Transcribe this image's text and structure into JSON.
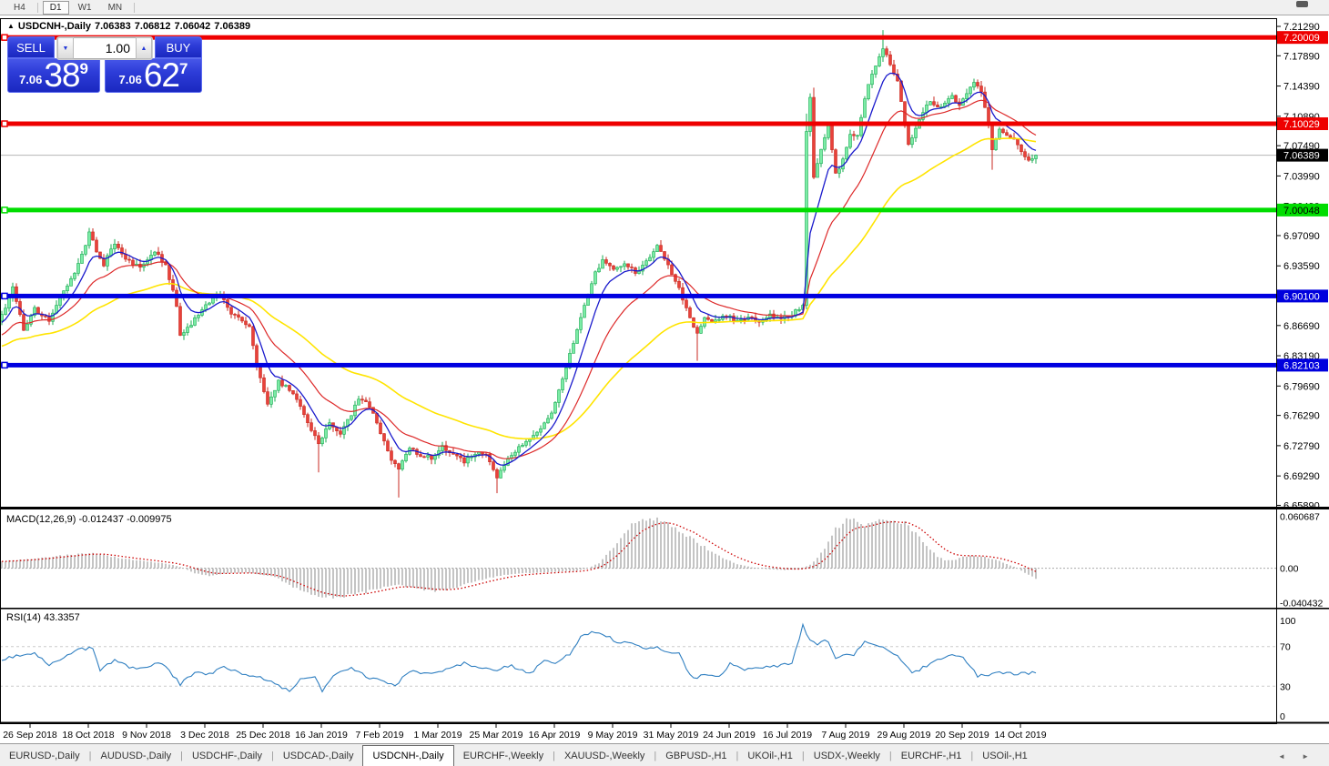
{
  "toolbar": {
    "timeframes": [
      {
        "label": "H4",
        "active": false
      },
      {
        "label": "D1",
        "active": true
      },
      {
        "label": "W1",
        "active": false
      },
      {
        "label": "MN",
        "active": false
      }
    ]
  },
  "chart": {
    "symbol_period": "USDCNH-,Daily",
    "open": "7.06383",
    "high": "7.06812",
    "low": "7.06042",
    "close": "7.06389"
  },
  "trade_panel": {
    "sell_label": "SELL",
    "buy_label": "BUY",
    "volume": "1.00",
    "sell_price": {
      "small": "7.06",
      "big": "38",
      "sup": "9"
    },
    "buy_price": {
      "small": "7.06",
      "big": "62",
      "sup": "7"
    }
  },
  "price_axis": {
    "ticks": [
      {
        "label": "7.21290",
        "price": 7.2129
      },
      {
        "label": "7.17890",
        "price": 7.1789
      },
      {
        "label": "7.14390",
        "price": 7.1439
      },
      {
        "label": "7.10890",
        "price": 7.1089
      },
      {
        "label": "7.07490",
        "price": 7.0749
      },
      {
        "label": "7.03990",
        "price": 7.0399
      },
      {
        "label": "7.00490",
        "price": 7.0049
      },
      {
        "label": "6.97090",
        "price": 6.9709
      },
      {
        "label": "6.93590",
        "price": 6.9359
      },
      {
        "label": "6.90090",
        "price": 6.9009
      },
      {
        "label": "6.86690",
        "price": 6.8669
      },
      {
        "label": "6.83190",
        "price": 6.8319
      },
      {
        "label": "6.79690",
        "price": 6.7969
      },
      {
        "label": "6.76290",
        "price": 6.7629
      },
      {
        "label": "6.72790",
        "price": 6.7279
      },
      {
        "label": "6.69290",
        "price": 6.6929
      },
      {
        "label": "6.65890",
        "price": 6.6589
      }
    ],
    "badges": [
      {
        "label": "7.20009",
        "price": 7.20009,
        "bg": "#ee0000",
        "fg": "#ffffff"
      },
      {
        "label": "7.10029",
        "price": 7.10029,
        "bg": "#ee0000",
        "fg": "#ffffff"
      },
      {
        "label": "7.06389",
        "price": 7.06389,
        "bg": "#000000",
        "fg": "#ffffff"
      },
      {
        "label": "7.00048",
        "price": 7.00048,
        "bg": "#00dd00",
        "fg": "#000000"
      },
      {
        "label": "6.90100",
        "price": 6.901,
        "bg": "#0000dd",
        "fg": "#ffffff"
      },
      {
        "label": "6.82103",
        "price": 6.82103,
        "bg": "#0000dd",
        "fg": "#ffffff"
      }
    ]
  },
  "chart_data": {
    "type": "candlestick",
    "symbol": "USDCNH-",
    "timeframe": "Daily",
    "ohlc_current": {
      "open": "7.06383",
      "high": "7.06812",
      "low": "7.06042",
      "close": "7.06389"
    },
    "y_range": [
      6.64,
      7.223
    ],
    "num_candles": 285,
    "x_labels": [
      "26 Sep 2018",
      "18 Oct 2018",
      "9 Nov 2018",
      "3 Dec 2018",
      "25 Dec 2018",
      "16 Jan 2019",
      "7 Feb 2019",
      "1 Mar 2019",
      "25 Mar 2019",
      "16 Apr 2019",
      "9 May 2019",
      "31 May 2019",
      "24 Jun 2019",
      "16 Jul 2019",
      "7 Aug 2019",
      "29 Aug 2019",
      "20 Sep 2019",
      "14 Oct 2019"
    ],
    "candles_per_label": 16,
    "first_label_candle": 8,
    "close_path": [
      [
        0,
        6.878
      ],
      [
        3,
        6.91
      ],
      [
        6,
        6.862
      ],
      [
        9,
        6.886
      ],
      [
        13,
        6.872
      ],
      [
        16,
        6.9
      ],
      [
        20,
        6.928
      ],
      [
        23,
        6.96
      ],
      [
        24,
        6.976
      ],
      [
        26,
        6.952
      ],
      [
        28,
        6.938
      ],
      [
        31,
        6.962
      ],
      [
        34,
        6.944
      ],
      [
        38,
        6.933
      ],
      [
        42,
        6.952
      ],
      [
        45,
        6.938
      ],
      [
        48,
        6.89
      ],
      [
        49,
        6.856
      ],
      [
        52,
        6.868
      ],
      [
        56,
        6.892
      ],
      [
        60,
        6.902
      ],
      [
        63,
        6.882
      ],
      [
        66,
        6.872
      ],
      [
        68,
        6.866
      ],
      [
        70,
        6.82
      ],
      [
        73,
        6.776
      ],
      [
        76,
        6.802
      ],
      [
        80,
        6.79
      ],
      [
        84,
        6.754
      ],
      [
        87,
        6.73
      ],
      [
        90,
        6.756
      ],
      [
        93,
        6.742
      ],
      [
        96,
        6.764
      ],
      [
        98,
        6.782
      ],
      [
        101,
        6.774
      ],
      [
        104,
        6.742
      ],
      [
        107,
        6.712
      ],
      [
        109,
        6.702
      ],
      [
        112,
        6.726
      ],
      [
        115,
        6.716
      ],
      [
        118,
        6.714
      ],
      [
        121,
        6.726
      ],
      [
        124,
        6.718
      ],
      [
        127,
        6.71
      ],
      [
        130,
        6.72
      ],
      [
        133,
        6.718
      ],
      [
        136,
        6.69
      ],
      [
        139,
        6.712
      ],
      [
        142,
        6.726
      ],
      [
        145,
        6.736
      ],
      [
        148,
        6.748
      ],
      [
        151,
        6.766
      ],
      [
        154,
        6.804
      ],
      [
        157,
        6.848
      ],
      [
        160,
        6.888
      ],
      [
        163,
        6.928
      ],
      [
        165,
        6.942
      ],
      [
        168,
        6.93
      ],
      [
        171,
        6.94
      ],
      [
        174,
        6.928
      ],
      [
        177,
        6.94
      ],
      [
        180,
        6.958
      ],
      [
        182,
        6.944
      ],
      [
        185,
        6.92
      ],
      [
        188,
        6.886
      ],
      [
        191,
        6.856
      ],
      [
        193,
        6.876
      ],
      [
        196,
        6.872
      ],
      [
        199,
        6.878
      ],
      [
        202,
        6.872
      ],
      [
        205,
        6.878
      ],
      [
        208,
        6.871
      ],
      [
        211,
        6.878
      ],
      [
        214,
        6.874
      ],
      [
        217,
        6.88
      ],
      [
        220,
        6.89
      ],
      [
        221,
        7.09
      ],
      [
        222,
        7.132
      ],
      [
        223,
        7.036
      ],
      [
        225,
        7.072
      ],
      [
        227,
        7.098
      ],
      [
        229,
        7.042
      ],
      [
        231,
        7.058
      ],
      [
        233,
        7.09
      ],
      [
        235,
        7.086
      ],
      [
        236,
        7.108
      ],
      [
        238,
        7.148
      ],
      [
        240,
        7.168
      ],
      [
        242,
        7.188
      ],
      [
        244,
        7.168
      ],
      [
        246,
        7.148
      ],
      [
        248,
        7.1
      ],
      [
        249,
        7.078
      ],
      [
        251,
        7.094
      ],
      [
        253,
        7.112
      ],
      [
        255,
        7.128
      ],
      [
        257,
        7.118
      ],
      [
        259,
        7.126
      ],
      [
        261,
        7.132
      ],
      [
        263,
        7.122
      ],
      [
        265,
        7.136
      ],
      [
        267,
        7.15
      ],
      [
        269,
        7.138
      ],
      [
        271,
        7.1
      ],
      [
        272,
        7.072
      ],
      [
        274,
        7.092
      ],
      [
        276,
        7.086
      ],
      [
        278,
        7.082
      ],
      [
        280,
        7.068
      ],
      [
        282,
        7.058
      ],
      [
        284,
        7.0639
      ]
    ],
    "wick_overrides": {
      "87": {
        "low": 6.697
      },
      "109": {
        "low": 6.668
      },
      "136": {
        "low": 6.673
      },
      "191": {
        "low": 6.826
      },
      "221": {
        "high": 7.112
      },
      "223": {
        "high": 7.142
      },
      "242": {
        "high": 7.2085
      },
      "272": {
        "low": 7.047
      }
    },
    "moving_averages": [
      {
        "name": "fast-ma",
        "period": 8,
        "color": "#1a1acc"
      },
      {
        "name": "mid-ma",
        "period": 21,
        "color": "#dd2929"
      },
      {
        "name": "slow-ma",
        "period": 55,
        "color": "#ffe400"
      }
    ],
    "levels": [
      {
        "price": 7.20009,
        "color": "#ee0000"
      },
      {
        "price": 7.10029,
        "color": "#ee0000"
      },
      {
        "price": 7.00048,
        "color": "#00dd00"
      },
      {
        "price": 6.901,
        "color": "#0000e0"
      },
      {
        "price": 6.82103,
        "color": "#0000e0"
      }
    ],
    "current_price": 7.06389,
    "macd": {
      "name": "MACD(12,26,9)",
      "values_text": "-0.012437 -0.009975",
      "scale": [
        {
          "label": "0.060687",
          "value": 0.060687
        },
        {
          "label": "0.00",
          "value": 0
        },
        {
          "label": "-0.040432",
          "value": -0.040432
        }
      ],
      "path": [
        [
          0,
          0.008
        ],
        [
          8,
          0.011
        ],
        [
          15,
          0.014
        ],
        [
          25,
          0.018
        ],
        [
          32,
          0.012
        ],
        [
          40,
          0.008
        ],
        [
          47,
          0.004
        ],
        [
          50,
          0
        ],
        [
          53,
          -0.006
        ],
        [
          57,
          -0.009
        ],
        [
          62,
          -0.006
        ],
        [
          67,
          -0.005
        ],
        [
          72,
          -0.008
        ],
        [
          75,
          -0.01
        ],
        [
          80,
          -0.022
        ],
        [
          84,
          -0.03
        ],
        [
          88,
          -0.034
        ],
        [
          94,
          -0.033
        ],
        [
          100,
          -0.028
        ],
        [
          105,
          -0.022
        ],
        [
          109,
          -0.02
        ],
        [
          113,
          -0.022
        ],
        [
          118,
          -0.027
        ],
        [
          123,
          -0.025
        ],
        [
          128,
          -0.018
        ],
        [
          133,
          -0.012
        ],
        [
          138,
          -0.008
        ],
        [
          143,
          -0.006
        ],
        [
          148,
          -0.005
        ],
        [
          153,
          -0.004
        ],
        [
          158,
          -0.003
        ],
        [
          161,
          0
        ],
        [
          164,
          0.006
        ],
        [
          166,
          0.015
        ],
        [
          169,
          0.03
        ],
        [
          172,
          0.046
        ],
        [
          175,
          0.057
        ],
        [
          178,
          0.06
        ],
        [
          181,
          0.057
        ],
        [
          184,
          0.05
        ],
        [
          187,
          0.042
        ],
        [
          190,
          0.033
        ],
        [
          194,
          0.022
        ],
        [
          198,
          0.012
        ],
        [
          202,
          0.005
        ],
        [
          206,
          0.001
        ],
        [
          210,
          -0.001
        ],
        [
          215,
          -0.002
        ],
        [
          219,
          -0.001
        ],
        [
          222,
          0.004
        ],
        [
          224,
          0.012
        ],
        [
          227,
          0.03
        ],
        [
          229,
          0.045
        ],
        [
          231,
          0.054
        ],
        [
          233,
          0.057
        ],
        [
          236,
          0.053
        ],
        [
          238,
          0.05
        ],
        [
          240,
          0.053
        ],
        [
          242,
          0.057
        ],
        [
          245,
          0.058
        ],
        [
          248,
          0.052
        ],
        [
          251,
          0.04
        ],
        [
          254,
          0.026
        ],
        [
          257,
          0.014
        ],
        [
          259,
          0.009
        ],
        [
          261,
          0.009
        ],
        [
          264,
          0.013
        ],
        [
          267,
          0.015
        ],
        [
          270,
          0.013
        ],
        [
          273,
          0.01
        ],
        [
          276,
          0.005
        ],
        [
          279,
          0
        ],
        [
          282,
          -0.008
        ],
        [
          284,
          -0.0124
        ]
      ]
    },
    "rsi": {
      "name": "RSI(14)",
      "value_text": "43.3357",
      "scale": [
        {
          "label": "100",
          "value": 100
        },
        {
          "label": "70",
          "value": 70
        },
        {
          "label": "30",
          "value": 30
        },
        {
          "label": "0",
          "value": 0
        }
      ],
      "levels": [
        70,
        30
      ],
      "path": [
        [
          0,
          57
        ],
        [
          9,
          64
        ],
        [
          13,
          52
        ],
        [
          22,
          68
        ],
        [
          25,
          68
        ],
        [
          27,
          47
        ],
        [
          31,
          57
        ],
        [
          37,
          46
        ],
        [
          42,
          53
        ],
        [
          45,
          50
        ],
        [
          49,
          32
        ],
        [
          53,
          44
        ],
        [
          57,
          42
        ],
        [
          61,
          50
        ],
        [
          66,
          42
        ],
        [
          71,
          39
        ],
        [
          75,
          34
        ],
        [
          79,
          24
        ],
        [
          82,
          38
        ],
        [
          86,
          40
        ],
        [
          88,
          25
        ],
        [
          92,
          44
        ],
        [
          96,
          49
        ],
        [
          100,
          40
        ],
        [
          104,
          35
        ],
        [
          108,
          31
        ],
        [
          112,
          45
        ],
        [
          117,
          43
        ],
        [
          122,
          46
        ],
        [
          127,
          53
        ],
        [
          131,
          49
        ],
        [
          136,
          46
        ],
        [
          140,
          51
        ],
        [
          145,
          42
        ],
        [
          149,
          57
        ],
        [
          152,
          54
        ],
        [
          156,
          62
        ],
        [
          159,
          79
        ],
        [
          162,
          84
        ],
        [
          165,
          83
        ],
        [
          169,
          75
        ],
        [
          173,
          72
        ],
        [
          177,
          68
        ],
        [
          180,
          69
        ],
        [
          184,
          62
        ],
        [
          186,
          64
        ],
        [
          188,
          46
        ],
        [
          190,
          38
        ],
        [
          194,
          42
        ],
        [
          197,
          39
        ],
        [
          200,
          53
        ],
        [
          204,
          46
        ],
        [
          207,
          50
        ],
        [
          211,
          49
        ],
        [
          214,
          51
        ],
        [
          217,
          54
        ],
        [
          220,
          91
        ],
        [
          222,
          76
        ],
        [
          224,
          73
        ],
        [
          227,
          76
        ],
        [
          229,
          58
        ],
        [
          231,
          61
        ],
        [
          234,
          62
        ],
        [
          237,
          76
        ],
        [
          241,
          70
        ],
        [
          244,
          66
        ],
        [
          248,
          53
        ],
        [
          250,
          42
        ],
        [
          254,
          51
        ],
        [
          257,
          56
        ],
        [
          261,
          61
        ],
        [
          264,
          60
        ],
        [
          268,
          40
        ],
        [
          271,
          42
        ],
        [
          275,
          44
        ],
        [
          278,
          43
        ],
        [
          284,
          43.3
        ]
      ]
    },
    "candle_colors": {
      "bull_fill": "#7ceca6",
      "bull_border": "#18ab52",
      "bear_fill": "#e8413a",
      "bear_border": "#c92a20"
    }
  },
  "tab_bar": {
    "tabs": [
      {
        "label": "EURUSD-,Daily",
        "active": false
      },
      {
        "label": "AUDUSD-,Daily",
        "active": false
      },
      {
        "label": "USDCHF-,Daily",
        "active": false
      },
      {
        "label": "USDCAD-,Daily",
        "active": false
      },
      {
        "label": "USDCNH-,Daily",
        "active": true
      },
      {
        "label": "EURCHF-,Weekly",
        "active": false
      },
      {
        "label": "XAUUSD-,Weekly",
        "active": false
      },
      {
        "label": "GBPUSD-,H1",
        "active": false
      },
      {
        "label": "UKOil-,H1",
        "active": false
      },
      {
        "label": "USDX-,Weekly",
        "active": false
      },
      {
        "label": "EURCHF-,H1",
        "active": false
      },
      {
        "label": "USOil-,H1",
        "active": false
      }
    ],
    "left_arrow": "◄",
    "right_arrow": "►"
  }
}
